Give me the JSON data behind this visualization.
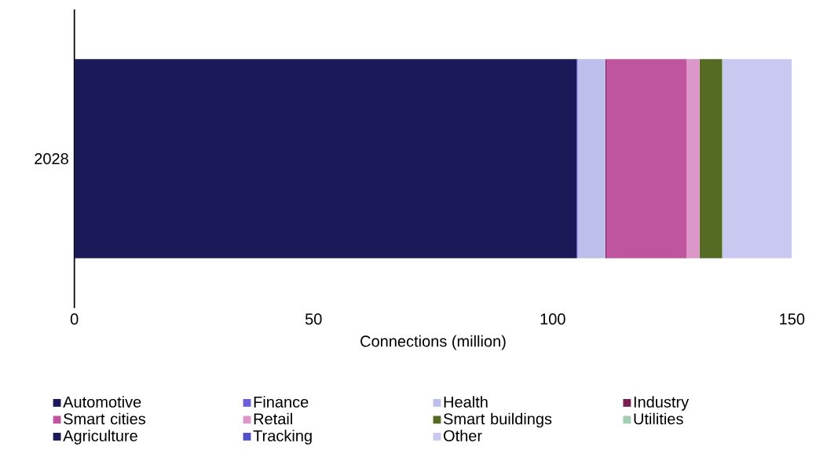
{
  "chart_data": {
    "type": "bar",
    "orientation": "horizontal",
    "stacked": true,
    "categories": [
      "2028"
    ],
    "xlabel": "Connections (million)",
    "xlim": [
      0,
      150
    ],
    "xticks": [
      0,
      50,
      100,
      150
    ],
    "legend": "bottom",
    "series": [
      {
        "name": "Automotive",
        "color": "#1b1958",
        "values": [
          105
        ]
      },
      {
        "name": "Finance",
        "color": "#6a5fd8",
        "values": [
          0.2
        ]
      },
      {
        "name": "Health",
        "color": "#bebeed",
        "values": [
          5.8
        ]
      },
      {
        "name": "Industry",
        "color": "#7a1f4f",
        "values": [
          0.2
        ]
      },
      {
        "name": "Smart cities",
        "color": "#c0559f",
        "values": [
          16.8
        ]
      },
      {
        "name": "Retail",
        "color": "#dc96c8",
        "values": [
          2.7
        ]
      },
      {
        "name": "Smart buildings",
        "color": "#556b24",
        "values": [
          4.7
        ]
      },
      {
        "name": "Utilities",
        "color": "#a0cdb4",
        "values": [
          0.1
        ]
      },
      {
        "name": "Agriculture",
        "color": "#1b1958",
        "values": [
          0
        ]
      },
      {
        "name": "Tracking",
        "color": "#5050c8",
        "values": [
          0
        ]
      },
      {
        "name": "Other",
        "color": "#c8c8f0",
        "values": [
          14.5
        ]
      }
    ]
  }
}
